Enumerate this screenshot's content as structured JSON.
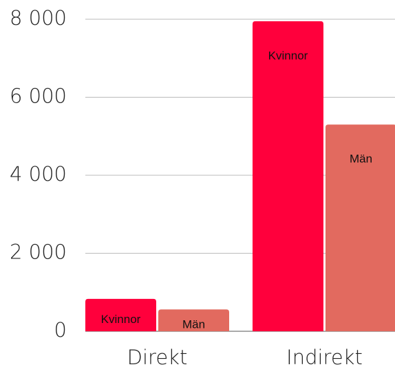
{
  "chart_data": {
    "type": "bar",
    "categories": [
      "Direkt",
      "Indirekt"
    ],
    "series": [
      {
        "name": "Kvinnor",
        "color": "#ff003c",
        "values": [
          830,
          7950
        ]
      },
      {
        "name": "Män",
        "color": "#e26a5f",
        "values": [
          560,
          5300
        ]
      }
    ],
    "ylim": [
      0,
      8000
    ],
    "yticks": [
      0,
      {
        "value": 2000,
        "label": "2 000"
      },
      {
        "value": 4000,
        "label": "4 000"
      },
      {
        "value": 6000,
        "label": "6 000"
      },
      {
        "value": 8000,
        "label": "8 000"
      }
    ],
    "grid": true
  }
}
